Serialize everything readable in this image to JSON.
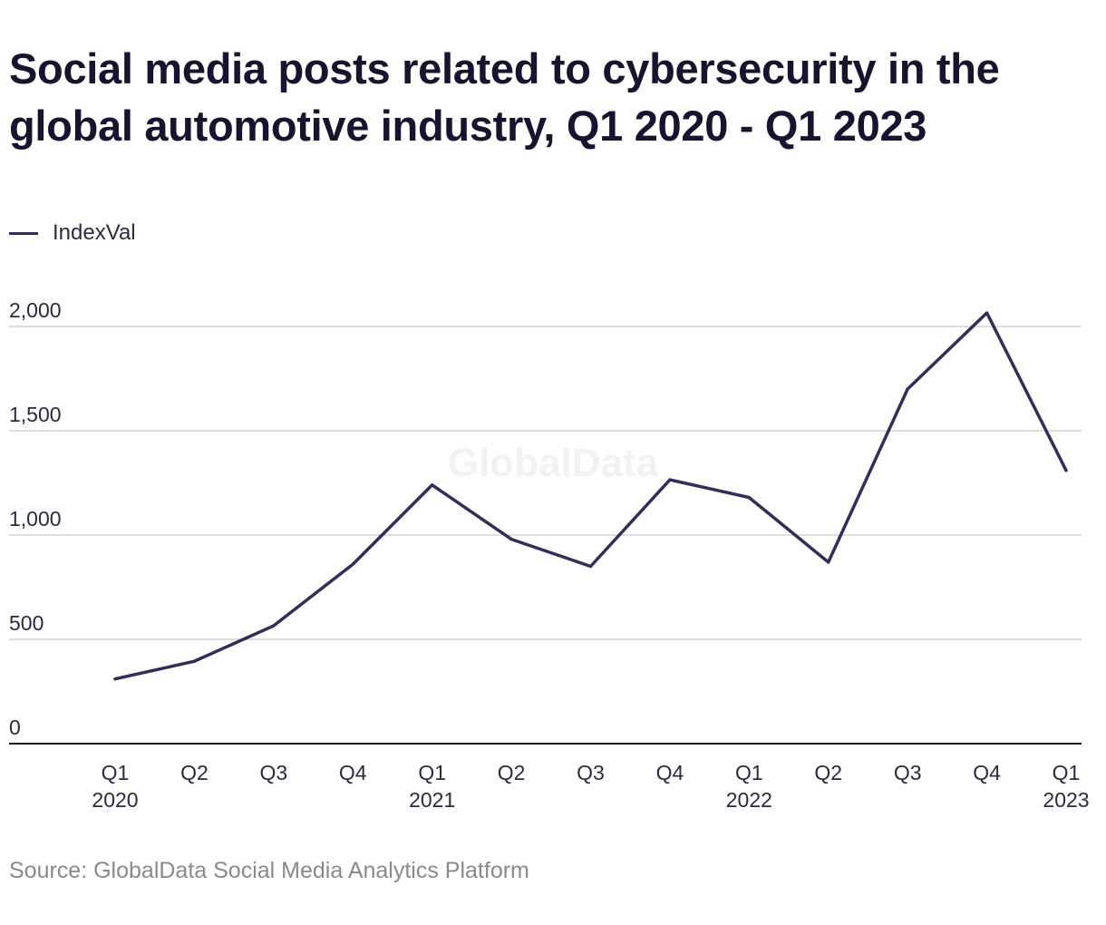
{
  "title": "Social media posts related to cybersecurity in the global automotive industry, Q1 2020 - Q1 2023",
  "legend": {
    "label": "IndexVal",
    "color": "#3a2a5c"
  },
  "watermark": "GlobalData",
  "source": "Source: GlobalData Social Media Analytics Platform",
  "chart_data": {
    "type": "line",
    "title": "Social media posts related to cybersecurity in the global automotive industry, Q1 2020 - Q1 2023",
    "categories": [
      [
        "Q1",
        "2020"
      ],
      [
        "Q2",
        ""
      ],
      [
        "Q3",
        ""
      ],
      [
        "Q4",
        ""
      ],
      [
        "Q1",
        "2021"
      ],
      [
        "Q2",
        ""
      ],
      [
        "Q3",
        ""
      ],
      [
        "Q4",
        ""
      ],
      [
        "Q1",
        "2022"
      ],
      [
        "Q2",
        ""
      ],
      [
        "Q3",
        ""
      ],
      [
        "Q4",
        ""
      ],
      [
        "Q1",
        "2023"
      ]
    ],
    "series": [
      {
        "name": "IndexVal",
        "color": "#3a2a5c",
        "values": [
          310,
          395,
          565,
          860,
          1240,
          980,
          850,
          1265,
          1180,
          870,
          1700,
          2065,
          1310
        ]
      }
    ],
    "yticks": [
      0,
      500,
      1000,
      1500,
      2000
    ],
    "ytick_labels": [
      "0",
      "500",
      "1,000",
      "1,500",
      "2,000"
    ],
    "ylim": [
      0,
      2000
    ],
    "grid": true,
    "legend_position": "top-left"
  }
}
